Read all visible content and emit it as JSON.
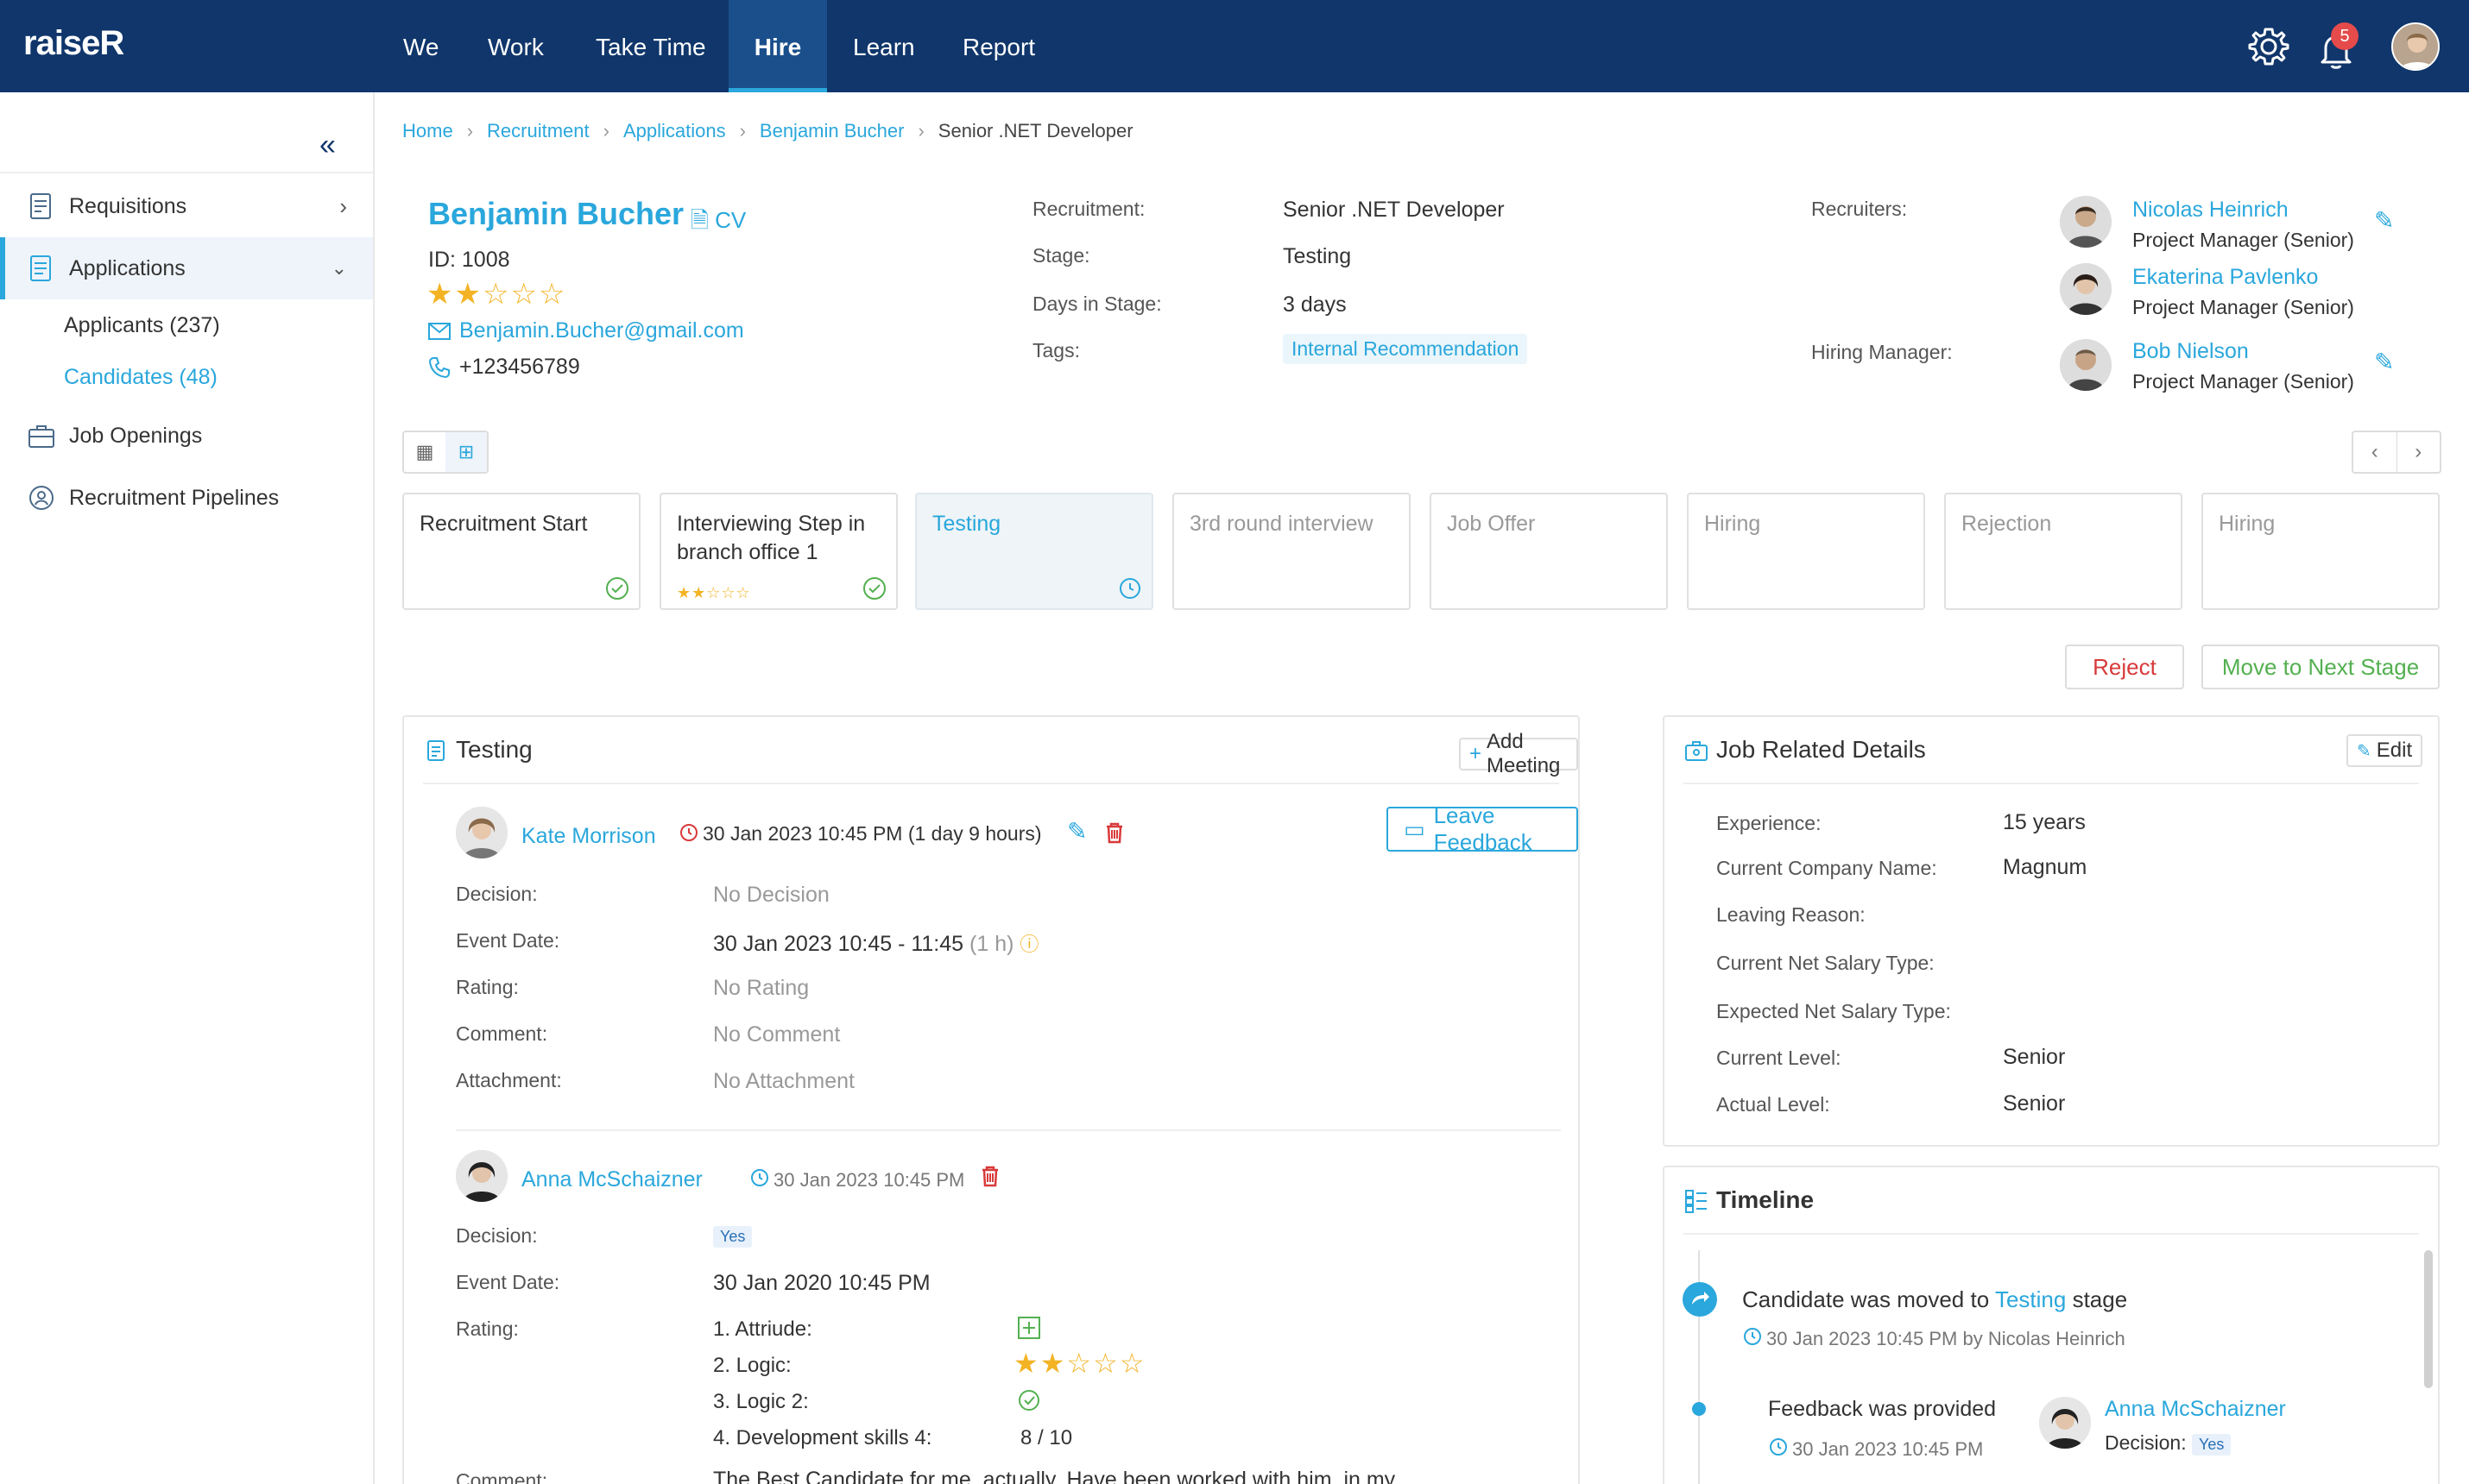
{
  "app": {
    "logo": "raiseR",
    "notifications": "5"
  },
  "nav": [
    {
      "label": "We"
    },
    {
      "label": "Work"
    },
    {
      "label": "Take Time"
    },
    {
      "label": "Hire"
    },
    {
      "label": "Learn"
    },
    {
      "label": "Report"
    }
  ],
  "sidebar": {
    "items": [
      {
        "label": "Requisitions"
      },
      {
        "label": "Applications"
      },
      {
        "label": "Job Openings"
      },
      {
        "label": "Recruitment Pipelines"
      }
    ],
    "sub": [
      {
        "label": "Applicants (237)"
      },
      {
        "label": "Candidates (48)"
      }
    ]
  },
  "breadcrumb": [
    "Home",
    "Recruitment",
    "Applications",
    "Benjamin Bucher",
    "Senior .NET Developer"
  ],
  "candidate": {
    "name": "Benjamin Bucher",
    "cv": "CV",
    "id": "ID: 1008",
    "rating": 2,
    "email": "Benjamin.Bucher@gmail.com",
    "phone": "+123456789"
  },
  "details": {
    "recruitment_label": "Recruitment:",
    "recruitment": "Senior .NET Developer",
    "stage_label": "Stage:",
    "stage": "Testing",
    "days_label": "Days in Stage:",
    "days": "3 days",
    "tags_label": "Tags:",
    "tag": "Internal Recommendation"
  },
  "people": {
    "recruiters_label": "Recruiters:",
    "hiring_label": "Hiring Manager:",
    "recruiters": [
      {
        "name": "Nicolas Heinrich",
        "role": "Project Manager (Senior)"
      },
      {
        "name": "Ekaterina Pavlenko",
        "role": "Project Manager (Senior)"
      }
    ],
    "hiring_manager": {
      "name": "Bob Nielson",
      "role": "Project Manager (Senior)"
    }
  },
  "stages": [
    {
      "label": "Recruitment Start",
      "status": "done"
    },
    {
      "label": "Interviewing Step in branch office 1",
      "status": "done"
    },
    {
      "label": "Testing",
      "status": "current"
    },
    {
      "label": "3rd round interview",
      "status": "pending"
    },
    {
      "label": "Job Offer",
      "status": "pending"
    },
    {
      "label": "Hiring",
      "status": "pending"
    },
    {
      "label": "Rejection",
      "status": "pending"
    },
    {
      "label": "Hiring",
      "status": "pending"
    }
  ],
  "actions": {
    "reject": "Reject",
    "next": "Move to Next Stage"
  },
  "testing": {
    "title": "Testing",
    "add_meeting": "Add Meeting",
    "leave_feedback": "Leave Feedback",
    "entry1": {
      "name": "Kate Morrison",
      "when": "30 Jan 2023 10:45 PM (1 day 9 hours)",
      "decision_label": "Decision:",
      "decision": "No Decision",
      "event_label": "Event Date:",
      "event": "30 Jan 2023 10:45 - 11:45",
      "event_dur": "(1 h)",
      "rating_label": "Rating:",
      "rating": "No Rating",
      "comment_label": "Comment:",
      "comment": "No Comment",
      "attach_label": "Attachment:",
      "attach": "No Attachment"
    },
    "entry2": {
      "name": "Anna McSchaizner",
      "when": "30 Jan 2023 10:45 PM",
      "decision_label": "Decision:",
      "decision": "Yes",
      "event_label": "Event Date:",
      "event": "30 Jan 2020 10:45 PM",
      "rating_label": "Rating:",
      "ratings": [
        {
          "label": "1. Attriude:"
        },
        {
          "label": "2. Logic:"
        },
        {
          "label": "3. Logic 2:"
        },
        {
          "label": "4. Development skills 4:",
          "value": "8 / 10"
        }
      ],
      "comment_label": "Comment:",
      "comment": "The Best Candidate for me, actually. Have been worked with him, in my"
    }
  },
  "job": {
    "title": "Job Related Details",
    "edit": "Edit",
    "rows": [
      {
        "label": "Experience:",
        "value": "15 years"
      },
      {
        "label": "Current Company Name:",
        "value": "Magnum"
      },
      {
        "label": "Leaving Reason:",
        "value": ""
      },
      {
        "label": "Current Net Salary Type:",
        "value": ""
      },
      {
        "label": "Expected Net Salary Type:",
        "value": ""
      },
      {
        "label": "Current Level:",
        "value": "Senior"
      },
      {
        "label": "Actual Level:",
        "value": "Senior"
      }
    ]
  },
  "timeline": {
    "title": "Timeline",
    "e1_text": "Candidate was moved to",
    "e1_link": "Testing",
    "e1_suffix": "stage",
    "e1_when": "30 Jan 2023 10:45 PM by Nicolas Heinrich",
    "e2_text": "Feedback was provided",
    "e2_when": "30 Jan 2023 10:45 PM",
    "e2_name": "Anna McSchaizner",
    "e2_decision_label": "Decision:",
    "e2_decision": "Yes"
  },
  "colors": {
    "nav_bg": "#10366b",
    "accent": "#2aa7dc",
    "star": "#f3b325",
    "danger": "#d83a3a",
    "success": "#53b050"
  }
}
